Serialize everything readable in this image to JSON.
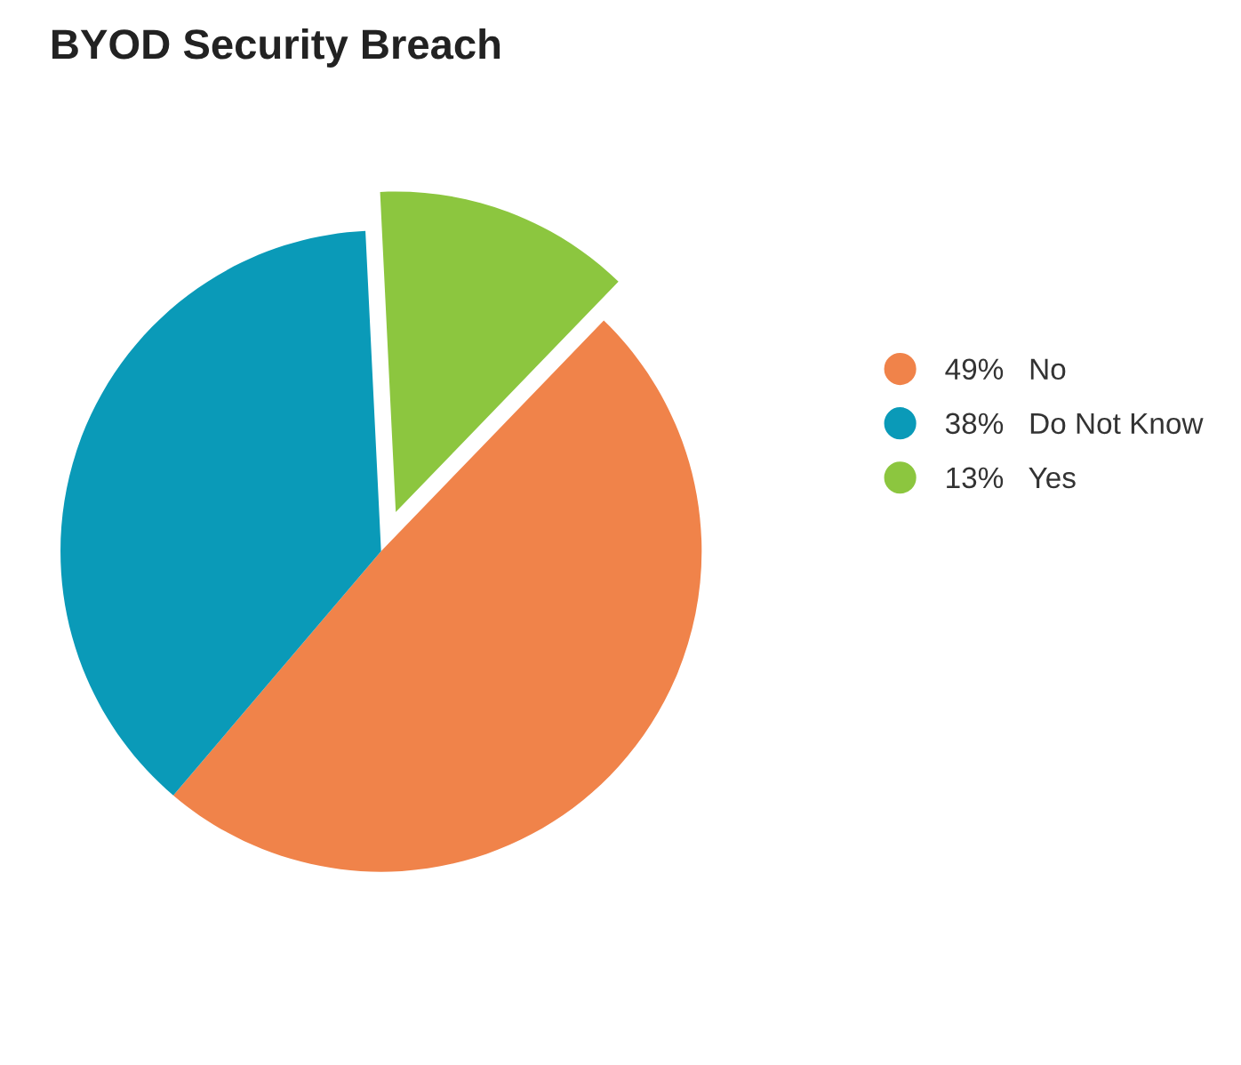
{
  "chart_data": {
    "type": "pie",
    "title": "BYOD Security Breach",
    "categories": [
      "No",
      "Do Not Know",
      "Yes"
    ],
    "values": [
      49,
      38,
      13
    ],
    "value_labels": [
      "49%",
      "38%",
      "13%"
    ],
    "colors": [
      "#f0834a",
      "#0a9ab8",
      "#8cc63f"
    ],
    "legend": "right"
  }
}
